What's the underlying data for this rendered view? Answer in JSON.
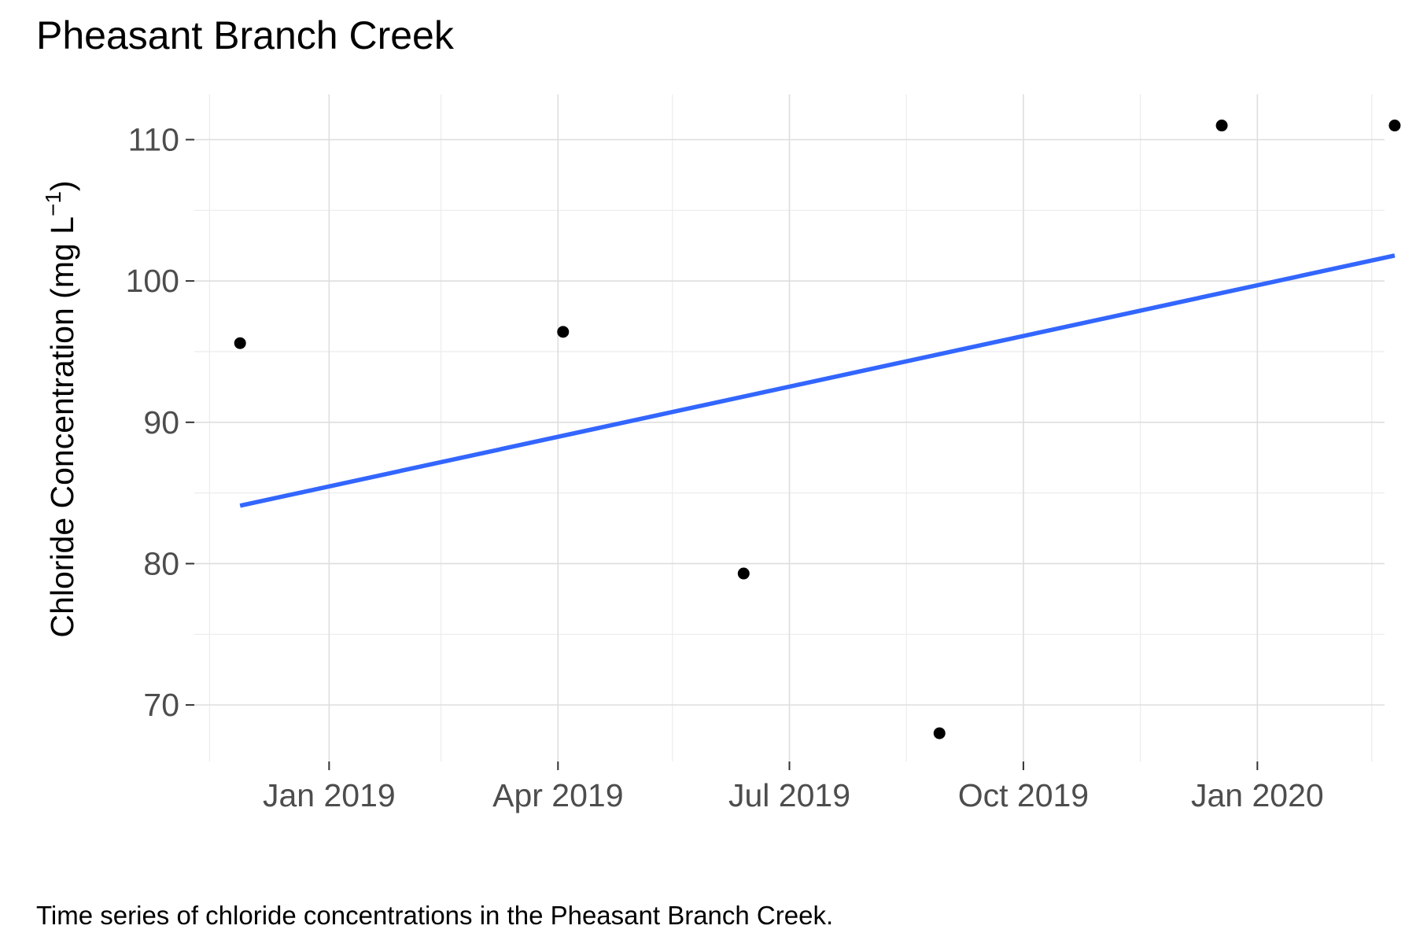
{
  "chart_data": {
    "type": "scatter",
    "title": "Pheasant Branch Creek",
    "ylabel_main": "Chloride Concentration (mg L",
    "ylabel_sup": "−1",
    "ylabel_close": ")",
    "xlabel": "",
    "caption": "Time series of chloride concentrations in the Pheasant Branch Creek.",
    "x_ticks": [
      {
        "date": "2019-01-01",
        "label": "Jan 2019"
      },
      {
        "date": "2019-04-01",
        "label": "Apr 2019"
      },
      {
        "date": "2019-07-01",
        "label": "Jul 2019"
      },
      {
        "date": "2019-10-01",
        "label": "Oct 2019"
      },
      {
        "date": "2020-01-01",
        "label": "Jan 2020"
      }
    ],
    "x_minor_ticks": [
      "2018-11-15",
      "2019-02-14",
      "2019-05-16",
      "2019-08-16",
      "2019-11-16",
      "2020-02-15"
    ],
    "y_ticks": [
      {
        "value": 70,
        "label": "70"
      },
      {
        "value": 80,
        "label": "80"
      },
      {
        "value": 90,
        "label": "90"
      },
      {
        "value": 100,
        "label": "100"
      },
      {
        "value": 110,
        "label": "110"
      }
    ],
    "y_minor_ticks": [
      75,
      85,
      95,
      105
    ],
    "xlim": [
      "2018-11-09",
      "2020-02-20"
    ],
    "ylim": [
      66.0,
      113.2
    ],
    "points": [
      {
        "x": "2018-11-27",
        "y": 95.6
      },
      {
        "x": "2019-04-03",
        "y": 96.4
      },
      {
        "x": "2019-06-13",
        "y": 79.3
      },
      {
        "x": "2019-08-29",
        "y": 68.0
      },
      {
        "x": "2019-12-18",
        "y": 111.0
      },
      {
        "x": "2020-02-24",
        "y": 111.0
      }
    ],
    "trend_line": {
      "start": {
        "x": "2018-11-27",
        "y": 84.1
      },
      "end": {
        "x": "2020-02-24",
        "y": 101.8
      },
      "color": "#3366ff"
    },
    "point_color": "#000000",
    "grid": true
  }
}
